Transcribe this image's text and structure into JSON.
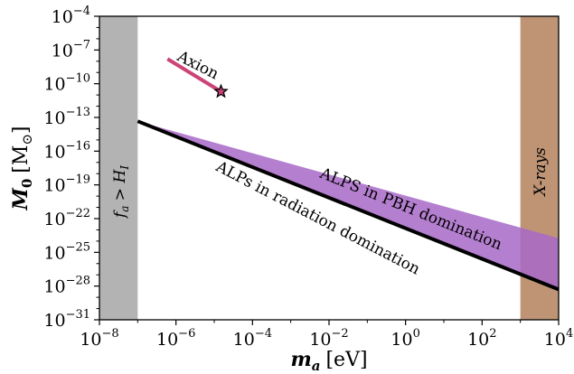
{
  "chart_data": {
    "type": "line",
    "xscale": "log",
    "yscale": "log",
    "xlim": [
      1e-08,
      10000.0
    ],
    "ylim": [
      1e-31,
      0.0001
    ],
    "xlabel": {
      "main": "m",
      "sub": "a",
      "unit": "[eV]"
    },
    "ylabel": {
      "main": "M",
      "sub": "0",
      "unit": "[M",
      "unit_sub": "⊙",
      "unit_close": "]"
    },
    "x_ticks": [
      {
        "value": 1e-08,
        "base": "10",
        "exp": "−8"
      },
      {
        "value": 1e-06,
        "base": "10",
        "exp": "−6"
      },
      {
        "value": 0.0001,
        "base": "10",
        "exp": "−4"
      },
      {
        "value": 0.01,
        "base": "10",
        "exp": "−2"
      },
      {
        "value": 1,
        "base": "10",
        "exp": "0"
      },
      {
        "value": 100.0,
        "base": "10",
        "exp": "2"
      },
      {
        "value": 10000.0,
        "base": "10",
        "exp": "4"
      }
    ],
    "y_ticks": [
      {
        "value": 0.0001,
        "base": "10",
        "exp": "−4"
      },
      {
        "value": 1e-07,
        "base": "10",
        "exp": "−7"
      },
      {
        "value": 1e-10,
        "base": "10",
        "exp": "−10"
      },
      {
        "value": 1e-13,
        "base": "10",
        "exp": "−13"
      },
      {
        "value": 1e-16,
        "base": "10",
        "exp": "−16"
      },
      {
        "value": 1e-19,
        "base": "10",
        "exp": "−19"
      },
      {
        "value": 1e-22,
        "base": "10",
        "exp": "−22"
      },
      {
        "value": 1e-25,
        "base": "10",
        "exp": "−25"
      },
      {
        "value": 1e-28,
        "base": "10",
        "exp": "−28"
      },
      {
        "value": 1e-31,
        "base": "10",
        "exp": "−31"
      }
    ],
    "regions": [
      {
        "name": "fa-exclusion",
        "x_range": [
          1e-08,
          1e-07
        ],
        "color": "#b3b3b3",
        "label": "f_a > H_I",
        "label_parts": [
          "f",
          "a",
          " > ",
          "H",
          "I"
        ]
      },
      {
        "name": "xray-exclusion",
        "x_range": [
          1000.0,
          10000.0
        ],
        "color": "#bb8e6e",
        "opacity": 0.95,
        "label": "X-rays"
      }
    ],
    "series": [
      {
        "name": "ALPs in radiation domination",
        "kind": "line",
        "color": "#000000",
        "x": [
          1e-07,
          10000.0
        ],
        "y": [
          4.6e-14,
          5e-29
        ]
      },
      {
        "name": "ALPS in PBH domination",
        "kind": "band",
        "color": "#a868c8",
        "x": [
          1e-07,
          10000.0
        ],
        "y_upper": [
          4.6e-14,
          1.8e-24
        ],
        "y_lower": [
          4.6e-14,
          5e-29
        ]
      },
      {
        "name": "Axion",
        "kind": "line",
        "color": "#cc4477",
        "x": [
          6e-07,
          1.5e-05
        ],
        "y": [
          1.6e-08,
          2e-11
        ]
      }
    ],
    "markers": [
      {
        "name": "axion-star",
        "x": 1.5e-05,
        "y": 2e-11,
        "shape": "star",
        "color": "#cc4477"
      }
    ],
    "annotations": [
      {
        "name": "axion-label",
        "text": "Axion"
      },
      {
        "name": "rd-label",
        "text": "ALPs in radiation domination"
      },
      {
        "name": "pbh-label",
        "text": "ALPS in PBH domination"
      }
    ]
  }
}
